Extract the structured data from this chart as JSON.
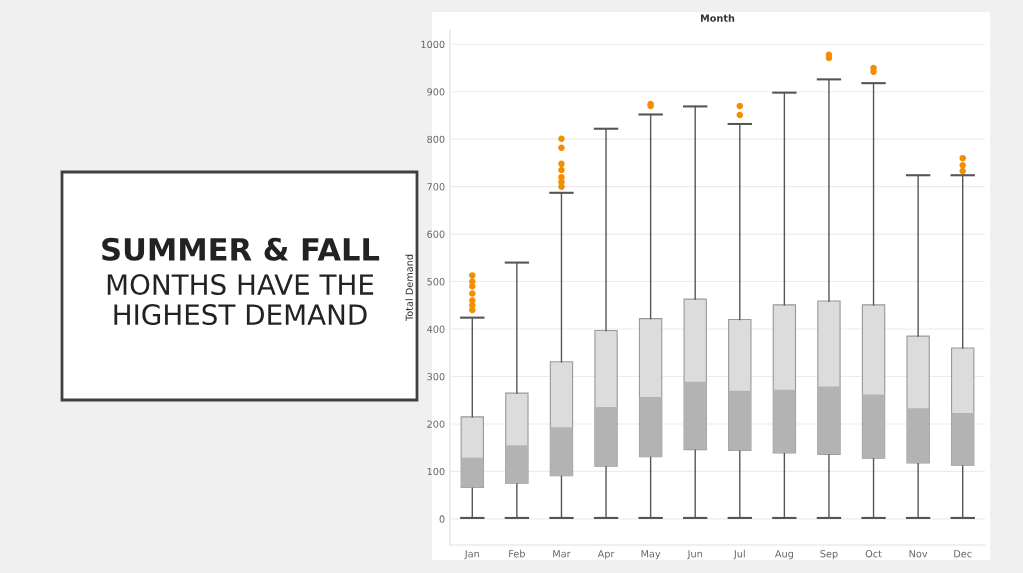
{
  "chart_data": {
    "type": "box",
    "title": "SUMMER & FALL",
    "subtitle": "MONTHS HAVE THE\nHIGHEST DEMAND",
    "xlabel": "Month",
    "ylabel": "Total Demand",
    "categories": [
      "Jan",
      "Feb",
      "Mar",
      "Apr",
      "May",
      "Jun",
      "Jul",
      "Aug",
      "Sep",
      "Oct",
      "Nov",
      "Dec"
    ],
    "color": "#dcdcdc",
    "boxes": [
      {
        "low": 2,
        "q1": 66,
        "median": 129,
        "q3": 215,
        "high": 424,
        "outliers": [
          440,
          450,
          460,
          475,
          490,
          500,
          513
        ]
      },
      {
        "low": 2,
        "q1": 75,
        "median": 155,
        "q3": 265,
        "high": 540
      },
      {
        "low": 2,
        "q1": 91,
        "median": 193,
        "q3": 331,
        "high": 687,
        "outliers": [
          700,
          710,
          720,
          735,
          748,
          782,
          801
        ]
      },
      {
        "low": 2,
        "q1": 111,
        "median": 236,
        "q3": 397,
        "high": 822
      },
      {
        "low": 2,
        "q1": 131,
        "median": 257,
        "q3": 422,
        "high": 852,
        "outliers": [
          870,
          874
        ]
      },
      {
        "low": 2,
        "q1": 146,
        "median": 289,
        "q3": 463,
        "high": 869
      },
      {
        "low": 2,
        "q1": 144,
        "median": 270,
        "q3": 420,
        "high": 832,
        "outliers": [
          851,
          870
        ]
      },
      {
        "low": 2,
        "q1": 139,
        "median": 272,
        "q3": 451,
        "high": 898
      },
      {
        "low": 2,
        "q1": 136,
        "median": 279,
        "q3": 459,
        "high": 926,
        "outliers": [
          971,
          978
        ]
      },
      {
        "low": 2,
        "q1": 128,
        "median": 262,
        "q3": 451,
        "high": 918,
        "outliers": [
          942,
          950
        ]
      },
      {
        "low": 2,
        "q1": 118,
        "median": 233,
        "q3": 385,
        "high": 724
      },
      {
        "low": 2,
        "q1": 113,
        "median": 223,
        "q3": 360,
        "high": 724,
        "outliers": [
          733,
          745,
          760
        ]
      }
    ],
    "ylim": [
      -55,
      1030
    ],
    "yticks": [
      0,
      100,
      200,
      300,
      400,
      500,
      600,
      700,
      800,
      900,
      1000
    ],
    "grid": "y"
  }
}
